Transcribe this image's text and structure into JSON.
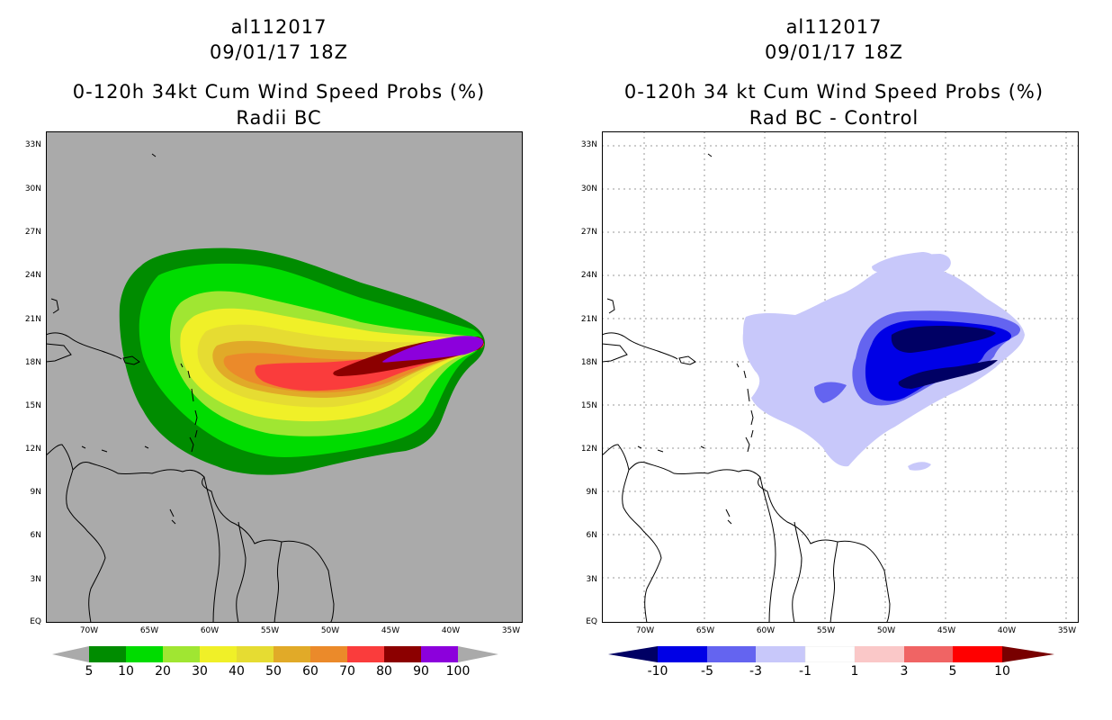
{
  "left_panel": {
    "storm_id": "al112017",
    "datetime": "09/01/17 18Z",
    "title": "0-120h 34kt Cum Wind Speed Probs (%)",
    "subtitle": "Radii BC",
    "background_color": "#aaaaaa",
    "colorbar": {
      "labels": [
        "5",
        "10",
        "20",
        "30",
        "40",
        "50",
        "60",
        "70",
        "80",
        "90",
        "100"
      ],
      "colors": [
        "#008c00",
        "#00dc00",
        "#a0e632",
        "#f0f028",
        "#e6dc32",
        "#e1aa28",
        "#eb8a2a",
        "#fa3c3c",
        "#8c0000",
        "#8c00dc"
      ]
    }
  },
  "right_panel": {
    "storm_id": "al112017",
    "datetime": "09/01/17 18Z",
    "title": "0-120h 34 kt Cum Wind Speed Probs (%)",
    "subtitle": "Rad BC - Control",
    "background_color": "#ffffff",
    "colorbar": {
      "labels": [
        "-10",
        "-5",
        "-3",
        "-1",
        "1",
        "3",
        "5",
        "10"
      ],
      "colors": [
        "#000064",
        "#0000e6",
        "#6464f0",
        "#c8c8fa",
        "#ffffff",
        "#fac8c8",
        "#f06464",
        "#ff0000",
        "#780000"
      ]
    }
  },
  "lat_labels": [
    "33N",
    "30N",
    "27N",
    "24N",
    "21N",
    "18N",
    "15N",
    "12N",
    "9N",
    "6N",
    "3N",
    "EQ"
  ],
  "lon_labels": [
    "70W",
    "65W",
    "60W",
    "55W",
    "50W",
    "45W",
    "40W",
    "35W"
  ]
}
